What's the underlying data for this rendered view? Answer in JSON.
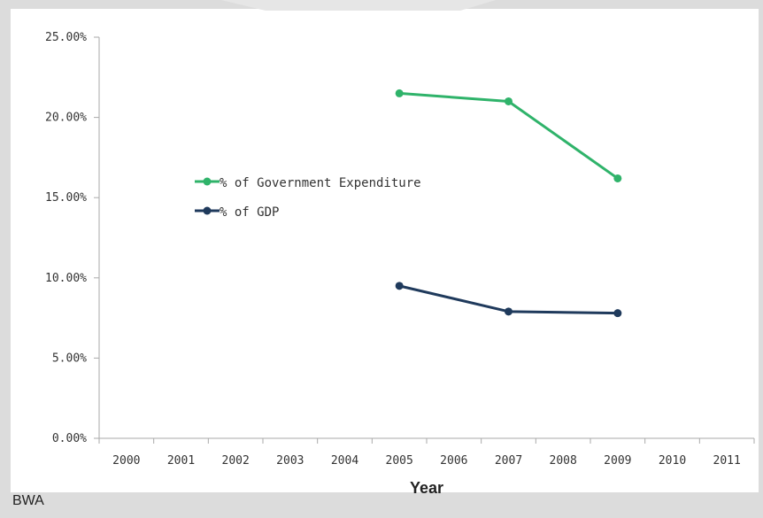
{
  "country_code": "BWA",
  "colors": {
    "gov_expenditure": "#2fb36a",
    "gdp": "#1f3a5c",
    "axis": "#aaaaaa",
    "background": "#dcdcdc"
  },
  "chart_data": {
    "type": "line",
    "xlabel": "Year",
    "ylabel": "",
    "categories": [
      "2000",
      "2001",
      "2002",
      "2003",
      "2004",
      "2005",
      "2006",
      "2007",
      "2008",
      "2009",
      "2010",
      "2011"
    ],
    "ylim": [
      0,
      25
    ],
    "y_ticks": [
      "0.00%",
      "5.00%",
      "10.00%",
      "15.00%",
      "20.00%",
      "25.00%"
    ],
    "grid": false,
    "legend_position": "left-inside",
    "series": [
      {
        "name": "% of Government Expenditure",
        "color": "#2fb36a",
        "points": [
          {
            "x": "2005",
            "y": 21.5
          },
          {
            "x": "2007",
            "y": 21.0
          },
          {
            "x": "2009",
            "y": 16.2
          }
        ]
      },
      {
        "name": "% of GDP",
        "color": "#1f3a5c",
        "points": [
          {
            "x": "2005",
            "y": 9.5
          },
          {
            "x": "2007",
            "y": 7.9
          },
          {
            "x": "2009",
            "y": 7.8
          }
        ]
      }
    ]
  }
}
